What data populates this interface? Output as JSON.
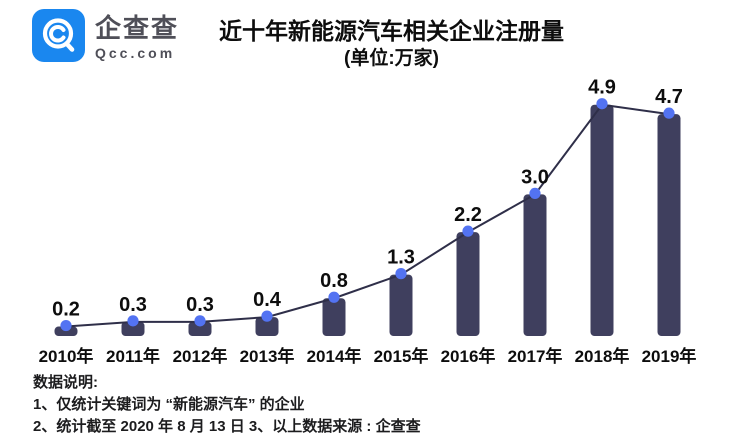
{
  "brand": {
    "name": "企查查",
    "domain": "Qcc.com",
    "logo_color": "#1a87ef"
  },
  "title": {
    "line1": "近十年新能源汽车相关企业注册量",
    "line2": "(单位:万家)"
  },
  "chart_data": {
    "type": "bar",
    "title": "近十年新能源汽车相关企业注册量",
    "subtitle": "(单位:万家)",
    "unit": "万家",
    "categories": [
      "2010年",
      "2011年",
      "2012年",
      "2013年",
      "2014年",
      "2015年",
      "2016年",
      "2017年",
      "2018年",
      "2019年"
    ],
    "values": [
      0.2,
      0.3,
      0.3,
      0.4,
      0.8,
      1.3,
      2.2,
      3.0,
      4.9,
      4.7
    ],
    "value_labels": [
      "0.2",
      "0.3",
      "0.3",
      "0.4",
      "0.8",
      "1.3",
      "2.2",
      "3.0",
      "4.9",
      "4.7"
    ],
    "overlay": "line-with-markers",
    "ylim": [
      0,
      5.2
    ],
    "grid": false,
    "legend": "none",
    "colors": {
      "bar": "#3f3f5e",
      "marker": "#5373f2",
      "line": "#2f2f49",
      "label": "#0d0d0d"
    }
  },
  "notes": {
    "heading": "数据说明:",
    "line1": "1、仅统计关键词为 “新能源汽车” 的企业",
    "line2": "2、统计截至 2020 年 8 月 13 日  3、以上数据来源 : 企查查"
  }
}
